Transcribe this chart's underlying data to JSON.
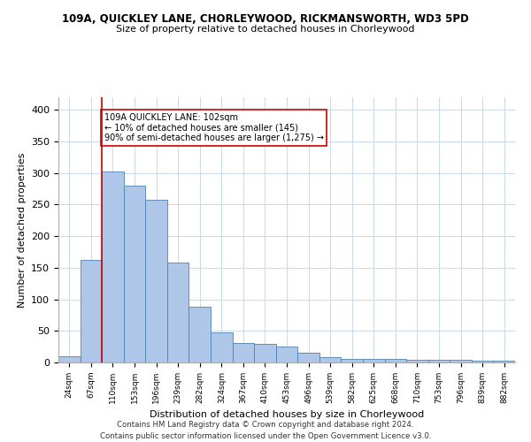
{
  "title_line1": "109A, QUICKLEY LANE, CHORLEYWOOD, RICKMANSWORTH, WD3 5PD",
  "title_line2": "Size of property relative to detached houses in Chorleywood",
  "xlabel": "Distribution of detached houses by size in Chorleywood",
  "ylabel": "Number of detached properties",
  "categories": [
    "24sqm",
    "67sqm",
    "110sqm",
    "153sqm",
    "196sqm",
    "239sqm",
    "282sqm",
    "324sqm",
    "367sqm",
    "410sqm",
    "453sqm",
    "496sqm",
    "539sqm",
    "582sqm",
    "625sqm",
    "668sqm",
    "710sqm",
    "753sqm",
    "796sqm",
    "839sqm",
    "882sqm"
  ],
  "values": [
    10,
    163,
    303,
    280,
    258,
    158,
    88,
    48,
    31,
    30,
    25,
    15,
    9,
    5,
    5,
    5,
    4,
    4,
    4,
    3,
    3
  ],
  "bar_color": "#aec6e8",
  "bar_edge_color": "#5080b0",
  "vline_x": 1.5,
  "vline_color": "#cc0000",
  "annotation_text": "109A QUICKLEY LANE: 102sqm\n← 10% of detached houses are smaller (145)\n90% of semi-detached houses are larger (1,275) →",
  "annotation_box_color": "#ffffff",
  "annotation_box_edge_color": "#cc0000",
  "ylim": [
    0,
    420
  ],
  "yticks": [
    0,
    50,
    100,
    150,
    200,
    250,
    300,
    350,
    400
  ],
  "footer_line1": "Contains HM Land Registry data © Crown copyright and database right 2024.",
  "footer_line2": "Contains public sector information licensed under the Open Government Licence v3.0.",
  "background_color": "#ffffff",
  "grid_color": "#c8d8ec"
}
